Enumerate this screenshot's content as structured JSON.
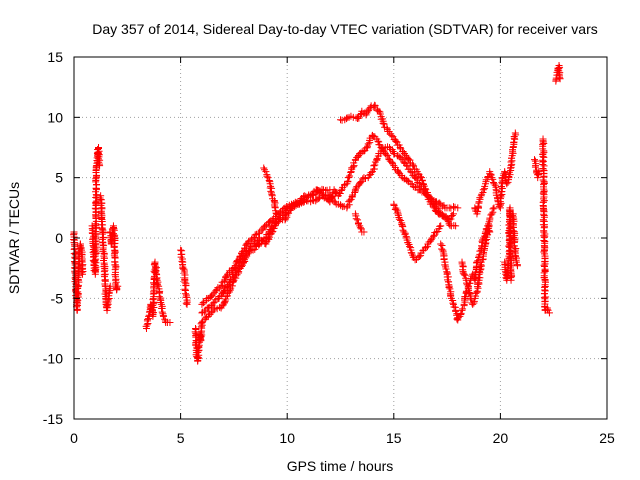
{
  "chart_data": {
    "type": "scatter",
    "title": "Day 357 of 2014, Sidereal Day-to-day VTEC variation (SDTVAR) for receiver vars",
    "xlabel": "GPS time / hours",
    "ylabel": "SDTVAR / TECUs",
    "xlim": [
      0,
      25
    ],
    "ylim": [
      -15,
      15
    ],
    "xticks": [
      "0",
      "5",
      "10",
      "15",
      "20",
      "25"
    ],
    "yticks": [
      "-15",
      "-10",
      "-5",
      "0",
      "5",
      "10",
      "15"
    ],
    "grid": true,
    "marker": "+",
    "colors": {
      "series": "#ff0000",
      "grid": "#a0a0a0",
      "axes": "#000000"
    },
    "series": [
      {
        "name": "vars",
        "segments": [
          {
            "x": [
              0.0,
              0.05,
              0.1,
              0.15,
              0.2,
              0.25,
              0.3
            ],
            "y": [
              0.5,
              -2,
              -5,
              -6,
              -4,
              -1.5,
              -0.5
            ]
          },
          {
            "x": [
              0.3,
              0.35,
              0.4
            ],
            "y": [
              -0.5,
              -1,
              -3
            ]
          },
          {
            "x": [
              0.85,
              0.9,
              0.95,
              1.0,
              1.05,
              1.1,
              1.15,
              1.2
            ],
            "y": [
              1,
              0,
              -2.5,
              -3,
              5,
              7,
              7.5,
              6
            ]
          },
          {
            "x": [
              1.25,
              1.3,
              1.35,
              1.4,
              1.45,
              1.5,
              1.55,
              1.6,
              1.65,
              1.7
            ],
            "y": [
              3.5,
              2,
              0.5,
              -1.5,
              -3.5,
              -5,
              -6,
              -5.5,
              -4.5,
              -4
            ]
          },
          {
            "x": [
              1.7,
              1.75,
              1.8,
              1.85,
              1.9,
              1.95,
              2.0,
              2.05
            ],
            "y": [
              0.5,
              -0.5,
              0.5,
              1,
              0,
              -3.5,
              -4.3,
              -4
            ]
          },
          {
            "x": [
              3.4,
              3.5,
              3.6,
              3.7,
              3.8,
              3.9,
              4.0,
              4.1,
              4.2,
              4.3,
              4.5
            ],
            "y": [
              -7.5,
              -6.5,
              -5.5,
              -6.5,
              -2,
              -3.5,
              -4.5,
              -5.5,
              -6.5,
              -7,
              -7
            ]
          },
          {
            "x": [
              5.0,
              5.1,
              5.2,
              5.3
            ],
            "y": [
              -1,
              -2,
              -3.5,
              -5.5
            ]
          },
          {
            "x": [
              5.7,
              5.75,
              5.8,
              5.85,
              5.9,
              5.95,
              6.0
            ],
            "y": [
              -7.5,
              -9.5,
              -10.2,
              -9,
              -8,
              -8.5,
              -7
            ]
          },
          {
            "x": [
              6.0,
              6.3,
              6.6,
              6.9,
              7.2,
              7.5,
              7.8,
              8.1,
              8.4,
              8.7,
              9.0,
              9.3,
              9.6,
              9.9,
              10.2,
              10.5,
              10.8,
              11.1,
              11.4,
              11.7,
              12.0
            ],
            "y": [
              -7,
              -6.5,
              -5.8,
              -5.8,
              -4.8,
              -3.5,
              -2.5,
              -1.5,
              -0.5,
              0,
              -0.5,
              0.5,
              1.5,
              1.5,
              2.5,
              2.8,
              3.5,
              3.5,
              4,
              3.5,
              3
            ]
          },
          {
            "x": [
              6.0,
              6.3,
              6.6,
              6.9,
              7.2,
              7.5,
              7.8,
              8.1,
              8.4,
              8.7,
              9.0,
              9.3,
              9.6,
              9.9,
              10.2,
              10.5,
              10.8,
              11.1,
              11.4,
              11.7,
              12.0
            ],
            "y": [
              -5.5,
              -5,
              -4.5,
              -4,
              -3,
              -2.5,
              -1.5,
              -0.5,
              0,
              0.5,
              1,
              1.5,
              2,
              2.5,
              2.8,
              3,
              3.2,
              3.5,
              3.8,
              4,
              4
            ]
          },
          {
            "x": [
              6.0,
              6.3,
              6.6,
              6.9,
              7.2,
              7.5,
              7.8,
              8.1,
              8.4,
              8.7,
              9.0,
              9.3,
              9.6,
              9.9,
              10.2,
              10.5,
              10.8,
              11.1,
              11.4,
              11.7,
              12.0
            ],
            "y": [
              -6.2,
              -5.8,
              -5.3,
              -4.8,
              -4,
              -3,
              -2,
              -1,
              -1,
              -0.5,
              0,
              1,
              1.5,
              2,
              2.5,
              2.8,
              3,
              3,
              3.2,
              3.5,
              3.5
            ]
          },
          {
            "x": [
              8.9,
              9.0,
              9.1,
              9.2,
              9.3,
              9.4,
              9.5
            ],
            "y": [
              5.8,
              5.5,
              5,
              4.5,
              3.5,
              3,
              2
            ]
          },
          {
            "x": [
              12.0,
              12.2,
              12.4,
              12.6,
              12.8,
              13.0,
              13.2,
              13.4,
              13.6,
              13.8,
              14.0,
              14.2,
              14.4,
              14.6,
              14.8,
              15.0,
              15.2,
              15.4,
              15.6,
              15.8,
              16.0,
              16.2,
              16.4,
              16.6,
              16.8,
              17.0,
              17.2,
              17.4,
              17.6,
              17.8,
              18.0
            ],
            "y": [
              3,
              4,
              3.5,
              4.2,
              4.5,
              5.5,
              6.5,
              7,
              7.2,
              7.8,
              8.5,
              8.2,
              7.5,
              7,
              6.5,
              6,
              5.5,
              5,
              4.8,
              4.5,
              4.2,
              4,
              3.8,
              3.5,
              3.2,
              3,
              2.8,
              2.5,
              2.5,
              2.6,
              2.5
            ]
          },
          {
            "x": [
              12.0,
              12.2,
              12.4,
              12.6,
              12.8,
              13.0,
              13.2,
              13.4,
              13.6,
              13.8,
              14.0,
              14.2,
              14.4,
              14.6,
              14.8,
              15.0,
              15.2,
              15.4,
              15.6,
              15.8,
              16.0,
              16.2,
              16.4,
              16.6,
              16.8,
              17.0,
              17.2,
              17.4,
              17.6,
              17.8
            ],
            "y": [
              3.5,
              3,
              2.8,
              2.6,
              2.5,
              3.2,
              4,
              4.5,
              5,
              5,
              5.5,
              6.5,
              7.2,
              7.5,
              7.5,
              7,
              6.8,
              6.5,
              6,
              5.5,
              5,
              4.5,
              4,
              3.5,
              3,
              2.5,
              2,
              1.8,
              1.5,
              2
            ]
          },
          {
            "x": [
              12.5,
              12.7,
              12.9,
              13.1,
              13.3,
              13.5,
              13.7,
              13.9,
              14.1,
              14.3,
              14.5,
              14.7,
              14.9,
              15.1,
              15.3,
              15.5,
              15.7,
              15.9,
              16.1,
              16.3,
              16.5,
              16.7,
              16.9,
              17.1,
              17.3,
              17.5,
              17.7,
              17.9
            ],
            "y": [
              9.8,
              9.8,
              10,
              10,
              9.9,
              10.5,
              10.2,
              10.8,
              11,
              10.5,
              9.5,
              9,
              8.5,
              8,
              7.5,
              7,
              6.5,
              6,
              5.5,
              5,
              4,
              3,
              2.5,
              2,
              1.8,
              1.5,
              1,
              1
            ]
          },
          {
            "x": [
              13.2,
              13.3,
              13.4,
              13.5,
              13.6
            ],
            "y": [
              2,
              1.5,
              1,
              0.5,
              0.5
            ]
          },
          {
            "x": [
              15.0,
              15.2,
              15.4,
              15.6,
              15.8,
              16.0,
              16.2,
              16.4,
              16.6,
              16.8,
              17.0,
              17.2
            ],
            "y": [
              2.8,
              2,
              1,
              0,
              -1,
              -1.8,
              -1.5,
              -1,
              -0.5,
              0,
              0.5,
              1
            ]
          },
          {
            "x": [
              17.2,
              17.3,
              17.4,
              17.5,
              17.6,
              17.7,
              17.8,
              17.9,
              18.0,
              18.1,
              18.2,
              18.3,
              18.4,
              18.5,
              18.6,
              18.7,
              18.8,
              18.9,
              19.0,
              19.1,
              19.2,
              19.3,
              19.4,
              19.5
            ],
            "y": [
              -0.5,
              -1,
              -2,
              -3,
              -4,
              -5,
              -5.5,
              -6,
              -6.8,
              -6.5,
              -6,
              -5.5,
              -4.5,
              -4,
              -3.5,
              -3,
              -3.5,
              -2,
              -1.5,
              -1,
              0,
              0.5,
              1,
              0.5
            ]
          },
          {
            "x": [
              18.2,
              18.3,
              18.4,
              18.5,
              18.6,
              18.7,
              18.8,
              18.9,
              19.0,
              19.1,
              19.2,
              19.3,
              19.4,
              19.5,
              19.6,
              19.7
            ],
            "y": [
              -2,
              -3,
              -3.5,
              -4,
              -5,
              -5.5,
              -5,
              -4.5,
              -3.5,
              -2,
              -1.5,
              -0.5,
              0.5,
              1.5,
              2,
              2.5
            ]
          },
          {
            "x": [
              18.8,
              18.9,
              19.0,
              19.1,
              19.2,
              19.3,
              19.4,
              19.5,
              19.6,
              19.7,
              19.8,
              19.9,
              20.0,
              20.1,
              20.2,
              20.3,
              20.4,
              20.5,
              20.6,
              20.7
            ],
            "y": [
              2.5,
              2,
              3,
              3.5,
              4,
              4.5,
              5,
              5.5,
              5,
              4.5,
              4,
              3,
              2.5,
              5,
              5.5,
              4.5,
              5,
              6,
              7.5,
              8.7
            ]
          },
          {
            "x": [
              20.2,
              20.25,
              20.3,
              20.35,
              20.4,
              20.45,
              20.5
            ],
            "y": [
              -2,
              -3,
              -3.5,
              -2.5,
              -1.5,
              2.5,
              -3.5
            ]
          },
          {
            "x": [
              20.6,
              20.65,
              20.7,
              20.75,
              20.8
            ],
            "y": [
              2,
              0,
              -1,
              -2,
              -2.3
            ]
          },
          {
            "x": [
              21.6,
              21.65,
              21.7,
              21.75,
              21.8
            ],
            "y": [
              6.5,
              6,
              5.5,
              5,
              5.5
            ]
          },
          {
            "x": [
              22.0,
              22.1,
              22.2,
              22.3
            ],
            "y": [
              8.2,
              -6,
              -5.8,
              -6.2
            ]
          },
          {
            "x": [
              22.6,
              22.65,
              22.7,
              22.75,
              22.8
            ],
            "y": [
              13,
              13.5,
              14,
              14.3,
              13.2
            ]
          }
        ]
      }
    ]
  }
}
